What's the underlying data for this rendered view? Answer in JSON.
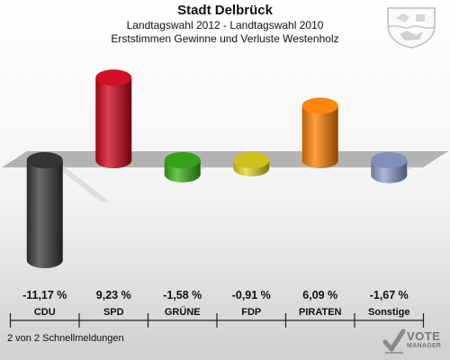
{
  "header": {
    "title": "Stadt Delbrück",
    "subtitle": "Landtagswahl 2012 - Landtagswahl 2010",
    "subtitle2": "Erststimmen Gewinne und Verluste Westenholz"
  },
  "footer": {
    "text": "2 von 2 Schnellmeldungen"
  },
  "logo": {
    "line1": "VOTE",
    "line2": "MANAGER"
  },
  "chart_data": {
    "type": "bar",
    "title": "Stadt Delbrück",
    "subtitle": "Landtagswahl 2012 - Landtagswahl 2010 / Erststimmen Gewinne und Verluste Westenholz",
    "categories": [
      "CDU",
      "SPD",
      "GRÜNE",
      "FDP",
      "PIRATEN",
      "Sonstige"
    ],
    "values": [
      -11.17,
      9.23,
      -1.58,
      -0.91,
      6.09,
      -1.67
    ],
    "value_labels": [
      "-11,17 %",
      "9,23 %",
      "-1,58 %",
      "-0,91 %",
      "6,09 %",
      "-1,67 %"
    ],
    "colors": [
      "#3a3a3a",
      "#d0021b",
      "#3cb31a",
      "#e6d620",
      "#ff8000",
      "#8f9fcf"
    ],
    "ylim": [
      -11.17,
      9.23
    ],
    "grid": false,
    "legend": "none"
  }
}
